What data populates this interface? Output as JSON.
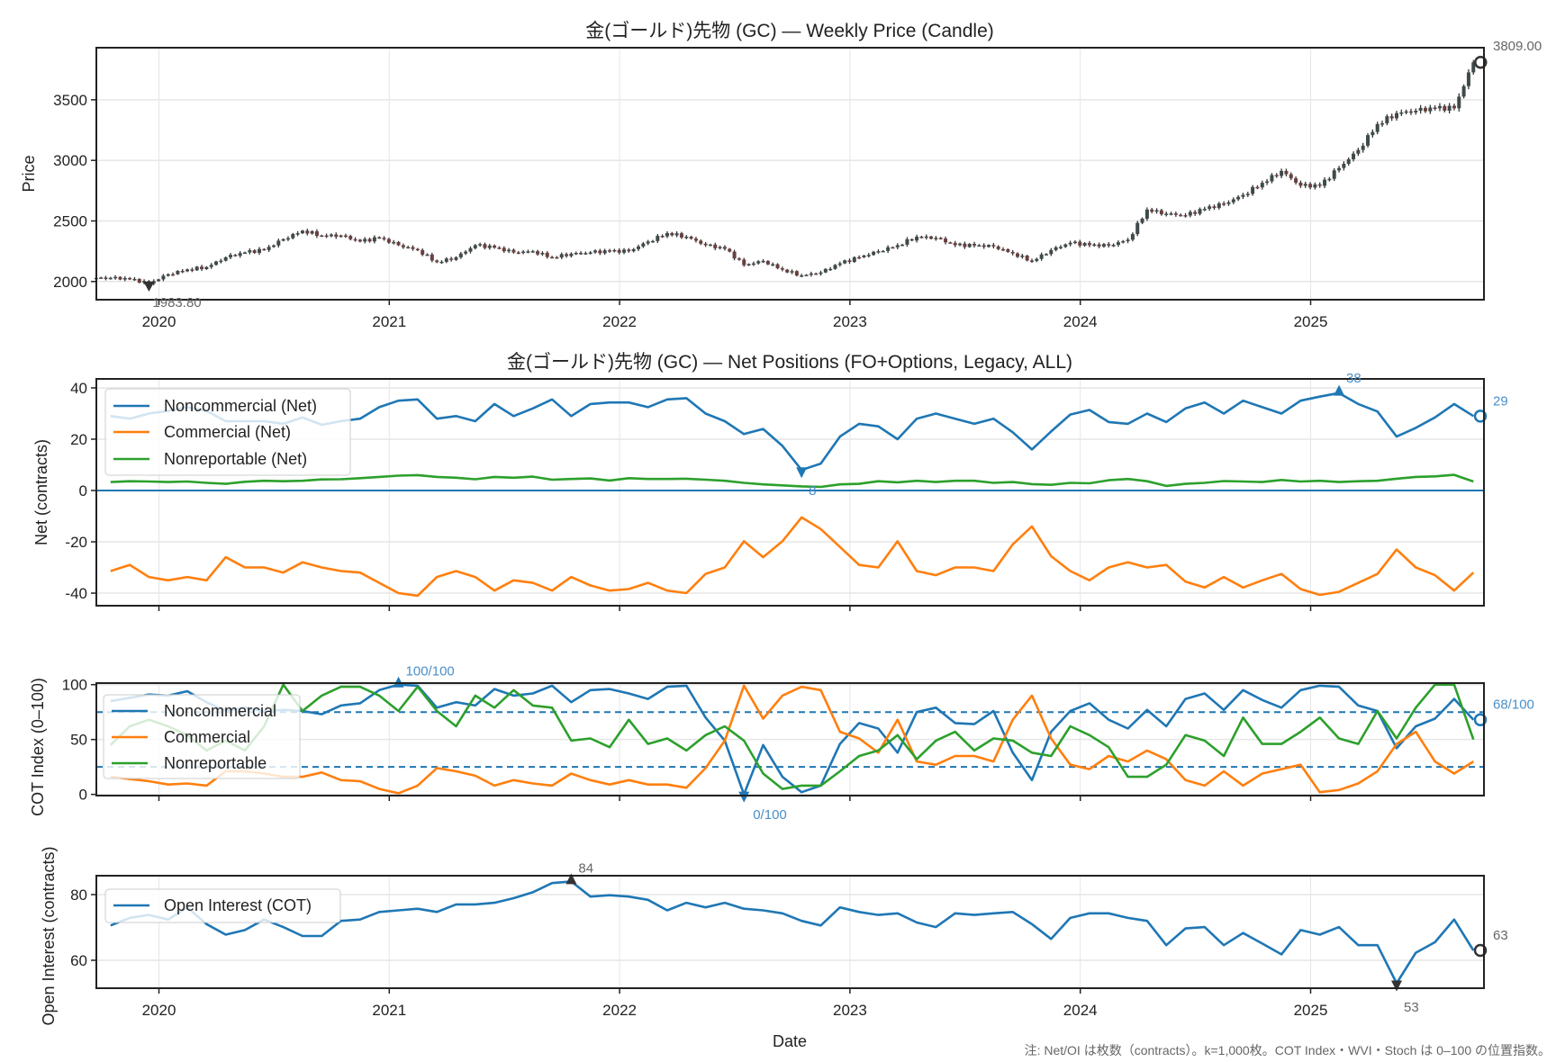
{
  "figure": {
    "note": "注: Net/OI は枚数（contracts）。k=1,000枚。COT Index・WVI・Stoch は 0–100 の位置指数。",
    "x_ticks": [
      "2020",
      "2021",
      "2022",
      "2023",
      "2024",
      "2025"
    ],
    "xlabel": "Date"
  },
  "chart_dates": [
    "2019-10",
    "2019-11",
    "2019-12",
    "2020-01",
    "2020-02",
    "2020-03",
    "2020-04",
    "2020-05",
    "2020-06",
    "2020-07",
    "2020-08",
    "2020-09",
    "2020-10",
    "2020-11",
    "2020-12",
    "2021-01",
    "2021-02",
    "2021-03",
    "2021-04",
    "2021-05",
    "2021-06",
    "2021-07",
    "2021-08",
    "2021-09",
    "2021-10",
    "2021-11",
    "2021-12",
    "2022-01",
    "2022-02",
    "2022-03",
    "2022-04",
    "2022-05",
    "2022-06",
    "2022-07",
    "2022-08",
    "2022-09",
    "2022-10",
    "2022-11",
    "2022-12",
    "2023-01",
    "2023-02",
    "2023-03",
    "2023-04",
    "2023-05",
    "2023-06",
    "2023-07",
    "2023-08",
    "2023-09",
    "2023-10",
    "2023-11",
    "2023-12",
    "2024-01",
    "2024-02",
    "2024-03",
    "2024-04",
    "2024-05",
    "2024-06",
    "2024-07",
    "2024-08",
    "2024-09",
    "2024-10",
    "2024-11",
    "2024-12",
    "2025-01",
    "2025-02",
    "2025-03",
    "2025-04",
    "2025-05",
    "2025-06",
    "2025-07",
    "2025-08",
    "2025-09"
  ],
  "chart_data": [
    {
      "type": "candlestick",
      "title": "金(ゴールド)先物 (GC) — Weekly Price (Candle)",
      "ylabel": "Price",
      "ylim": [
        1850,
        3930
      ],
      "yticks": [
        2000,
        2500,
        3000,
        3500
      ],
      "grid": true,
      "close": [
        2030,
        2020,
        1983.8,
        2060,
        2100,
        2120,
        2200,
        2240,
        2260,
        2350,
        2420,
        2380,
        2380,
        2330,
        2360,
        2300,
        2260,
        2160,
        2200,
        2300,
        2280,
        2240,
        2250,
        2200,
        2230,
        2240,
        2250,
        2250,
        2330,
        2400,
        2370,
        2300,
        2270,
        2135,
        2170,
        2098,
        2050,
        2075,
        2150,
        2200,
        2250,
        2300,
        2370,
        2360,
        2300,
        2297,
        2290,
        2232,
        2170,
        2260,
        2320,
        2300,
        2297,
        2345,
        2594,
        2560,
        2545,
        2600,
        2640,
        2715,
        2815,
        2913,
        2790,
        2790,
        2937,
        3086,
        3300,
        3390,
        3410,
        3430,
        3430,
        3809
      ],
      "annotations": {
        "min_label": "1983.80",
        "last_label": "3809.00"
      },
      "colors": {
        "candle": "#3f4a4a",
        "wick": "#333333",
        "marker": "#333333"
      }
    },
    {
      "type": "line",
      "title": "金(ゴールド)先物 (GC) — Net Positions (FO+Options, Legacy, ALL)",
      "ylabel": "Net (contracts)",
      "ylim": [
        -44.9,
        43.5
      ],
      "yticks": [
        -40,
        -20,
        0,
        20,
        40
      ],
      "grid": true,
      "zero_line": 0,
      "legend": "upper-left",
      "series": [
        {
          "name": "Noncommercial (Net)",
          "color": "#1f77b4",
          "values": [
            29,
            28,
            30,
            31,
            32.5,
            31,
            27,
            27,
            27,
            26,
            28.5,
            25.6,
            27,
            28,
            32.5,
            35,
            35.5,
            28,
            29,
            27,
            33.7,
            29,
            32,
            35.5,
            29,
            33.7,
            34.3,
            34.3,
            32.5,
            35.5,
            36,
            30,
            27,
            22,
            24,
            17.4,
            8,
            10.5,
            21,
            26,
            25,
            20,
            28,
            30,
            28,
            26,
            28,
            22.7,
            16,
            23,
            29.6,
            31.4,
            26.7,
            26,
            30,
            26.7,
            32,
            34.3,
            30,
            35,
            32.5,
            30,
            35,
            36.6,
            38,
            33.7,
            30.8,
            21,
            24.4,
            28.5,
            33.7,
            29
          ]
        },
        {
          "name": "Commercial (Net)",
          "color": "#ff7f0e",
          "values": [
            -31.4,
            -29,
            -33.7,
            -35,
            -33.7,
            -35,
            -26,
            -30,
            -30,
            -32,
            -28,
            -30,
            -31.4,
            -32,
            -36,
            -40,
            -41,
            -33.7,
            -31.4,
            -33.7,
            -39,
            -35,
            -36,
            -39,
            -33.7,
            -37,
            -39,
            -38.4,
            -36,
            -39,
            -40,
            -32.5,
            -30,
            -19.8,
            -26,
            -19.8,
            -10.5,
            -15,
            -22,
            -29,
            -30,
            -19.8,
            -31.4,
            -33,
            -30,
            -30,
            -31.4,
            -21,
            -14,
            -25.6,
            -31.4,
            -35,
            -30,
            -28,
            -30,
            -29,
            -35.5,
            -37.8,
            -33.7,
            -37.8,
            -35,
            -32.5,
            -38.4,
            -40.7,
            -39.5,
            -36,
            -32.5,
            -23,
            -30,
            -33,
            -39,
            -32
          ]
        },
        {
          "name": "Nonreportable (Net)",
          "color": "#2ca02c",
          "values": [
            3.3,
            3.6,
            3.5,
            3.3,
            3.5,
            3.0,
            2.6,
            3.4,
            3.8,
            3.6,
            3.8,
            4.3,
            4.4,
            4.8,
            5.3,
            5.8,
            6.0,
            5.3,
            5.0,
            4.4,
            5.3,
            5.0,
            5.4,
            4.2,
            4.5,
            4.7,
            3.9,
            4.8,
            4.5,
            4.5,
            4.6,
            4.2,
            3.8,
            3.0,
            2.4,
            2.0,
            1.6,
            1.4,
            2.4,
            2.6,
            3.6,
            3.2,
            3.8,
            3.3,
            3.8,
            3.8,
            3.0,
            3.3,
            2.5,
            2.2,
            3.0,
            2.8,
            4.0,
            4.5,
            3.6,
            1.8,
            2.6,
            3.0,
            3.7,
            3.5,
            3.3,
            4.1,
            3.5,
            3.8,
            3.3,
            3.6,
            3.8,
            4.6,
            5.3,
            5.5,
            6.1,
            3.5
          ]
        }
      ],
      "annotations": {
        "max_label": "38",
        "min_label": "8",
        "last_label": "29"
      }
    },
    {
      "type": "line",
      "ylabel": "COT Index (0–100)",
      "ylim": [
        -1.1,
        101.4
      ],
      "yticks": [
        0,
        50,
        100
      ],
      "grid": true,
      "reference_lines": [
        25,
        75
      ],
      "legend": "upper-left",
      "series": [
        {
          "name": "Noncommercial",
          "color": "#1f77b4",
          "values": [
            85,
            88,
            91,
            90,
            94,
            84,
            76,
            79,
            76,
            77,
            76,
            73,
            81,
            83,
            95,
            100,
            99,
            79,
            84,
            81,
            96,
            90,
            92,
            99,
            84,
            95,
            96,
            92,
            87,
            98,
            99,
            70,
            49,
            0,
            45,
            16,
            2,
            8,
            46,
            65,
            60,
            38,
            75,
            79,
            65,
            64,
            76,
            38,
            13,
            57,
            76,
            83,
            68,
            60,
            77,
            62,
            87,
            92,
            77,
            95,
            86,
            79,
            95,
            99,
            98,
            81,
            76,
            42,
            62,
            69,
            87,
            68
          ]
        },
        {
          "name": "Commercial",
          "color": "#ff7f0e",
          "values": [
            16,
            14,
            12,
            9,
            10,
            8,
            21,
            21,
            19,
            16,
            16,
            20,
            13,
            12,
            5,
            1,
            8,
            24,
            21,
            17,
            8,
            13,
            10,
            8,
            19,
            13,
            9,
            13,
            9,
            9,
            6,
            24,
            49,
            99,
            69,
            90,
            98,
            95,
            57,
            51,
            38,
            68,
            30,
            27,
            35,
            35,
            30,
            68,
            90,
            51,
            27,
            23,
            35,
            30,
            40,
            32,
            13,
            8,
            21,
            8,
            19,
            23,
            27,
            2,
            4,
            10,
            21,
            46,
            57,
            30,
            19,
            30
          ]
        },
        {
          "name": "Nonreportable",
          "color": "#2ca02c",
          "values": [
            45,
            62,
            68,
            62,
            54,
            40,
            49,
            40,
            62,
            100,
            76,
            90,
            98,
            98,
            90,
            76,
            98,
            76,
            62,
            90,
            79,
            95,
            81,
            79,
            49,
            51,
            43,
            68,
            46,
            51,
            40,
            54,
            62,
            49,
            19,
            5,
            8,
            8,
            21,
            35,
            40,
            54,
            32,
            49,
            57,
            40,
            51,
            49,
            38,
            35,
            62,
            54,
            43,
            16,
            16,
            27,
            54,
            49,
            35,
            70,
            46,
            46,
            57,
            70,
            51,
            46,
            76,
            51,
            79,
            100,
            100,
            50
          ]
        }
      ],
      "annotations": {
        "max_label": "100/100",
        "min_label": "0/100",
        "last_label": "68/100"
      }
    },
    {
      "type": "line",
      "ylabel": "Open Interest (contracts)",
      "xlabel": "Date",
      "ylim": [
        51.5,
        85.75
      ],
      "yticks": [
        60,
        80
      ],
      "grid": true,
      "legend": "upper-left",
      "series": [
        {
          "name": "Open Interest (COT)",
          "color": "#1f77b4",
          "values": [
            70.6,
            72.9,
            73.8,
            72.4,
            76.1,
            71,
            67.8,
            69.2,
            72.4,
            70.1,
            67.4,
            67.4,
            72,
            72.4,
            74.7,
            75.2,
            75.7,
            74.7,
            77,
            77,
            77.5,
            78.9,
            80.7,
            83.5,
            84,
            79.4,
            79.8,
            79.4,
            78.4,
            75.2,
            77.5,
            76.1,
            77.5,
            75.7,
            75.2,
            74.3,
            72,
            70.6,
            76.1,
            74.7,
            73.8,
            74.3,
            71.5,
            70.1,
            74.3,
            73.8,
            74.3,
            74.7,
            71,
            66.5,
            72.9,
            74.3,
            74.3,
            72.9,
            72,
            64.6,
            69.7,
            70.1,
            64.6,
            68.3,
            65.1,
            61.8,
            69.2,
            67.8,
            70.1,
            64.6,
            64.6,
            53,
            62.3,
            65.5,
            72.4,
            63
          ]
        }
      ],
      "annotations": {
        "max_label": "84",
        "min_label": "53",
        "last_label": "63"
      }
    }
  ]
}
